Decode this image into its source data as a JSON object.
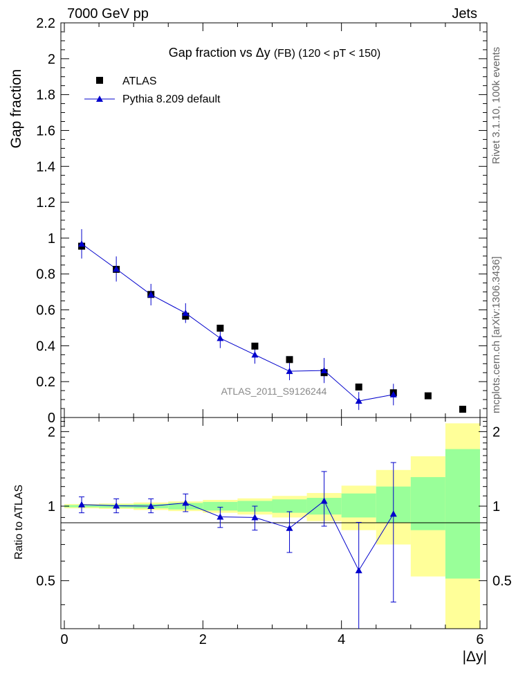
{
  "header": {
    "left": "7000 GeV pp",
    "right": "Jets"
  },
  "side_labels": {
    "top": "Rivet 3.1.10,  100k events",
    "bottom": "mcplots.cern.ch [arXiv:1306.3436]"
  },
  "chart_data": [
    {
      "type": "scatter",
      "title_main": "Gap fraction vs  Δy",
      "title_suffix": "(FB) (120 < pT < 150)",
      "xlabel": "",
      "ylabel": "Gap fraction",
      "xlim": [
        -0.05,
        6.1
      ],
      "ylim": [
        0,
        2.2
      ],
      "y_ticks": [
        0,
        0.2,
        0.4,
        0.6,
        0.8,
        1,
        1.2,
        1.4,
        1.6,
        1.8,
        2,
        2.2
      ],
      "y_tick_labels": [
        "0",
        "0.2",
        "0.4",
        "0.6",
        "0.8",
        "1",
        "1.2",
        "1.4",
        "1.6",
        "1.8",
        "2",
        "2.2"
      ],
      "watermark": "ATLAS_2011_S9126244",
      "legend_position": "top-left",
      "series": [
        {
          "name": "ATLAS",
          "style": "square-marker",
          "color": "#000000",
          "x": [
            0.25,
            0.75,
            1.25,
            1.75,
            2.25,
            2.75,
            3.25,
            3.75,
            4.25,
            4.75,
            5.25,
            5.75
          ],
          "y": [
            0.955,
            0.826,
            0.686,
            0.565,
            0.498,
            0.398,
            0.323,
            0.25,
            0.17,
            0.138,
            0.121,
            0.046
          ]
        },
        {
          "name": "Pythia 8.209 default",
          "style": "triangle-line",
          "color": "#0000cc",
          "x": [
            0.25,
            0.75,
            1.25,
            1.75,
            2.25,
            2.75,
            3.25,
            3.75,
            4.25,
            4.75
          ],
          "y": [
            0.968,
            0.828,
            0.685,
            0.582,
            0.442,
            0.35,
            0.258,
            0.262,
            0.092,
            0.128
          ],
          "yerr": [
            0.082,
            0.07,
            0.06,
            0.055,
            0.055,
            0.05,
            0.05,
            0.07,
            0.05,
            0.06
          ]
        }
      ]
    },
    {
      "type": "line",
      "xlabel": "|Δy|",
      "ylabel": "Ratio to ATLAS",
      "xlim": [
        -0.05,
        6.1
      ],
      "ylim": [
        0.32,
        2.28
      ],
      "x_ticks": [
        0,
        2,
        4,
        6
      ],
      "x_tick_labels": [
        "0",
        "2",
        "4",
        "6"
      ],
      "y_labeled_ticks": [
        0.5,
        1,
        2
      ],
      "y_tick_labels": [
        "0.5",
        "1",
        "2"
      ],
      "bins": [
        [
          0,
          0.5
        ],
        [
          0.5,
          1
        ],
        [
          1,
          1.5
        ],
        [
          1.5,
          2
        ],
        [
          2,
          2.5
        ],
        [
          2.5,
          3
        ],
        [
          3,
          3.5
        ],
        [
          3.5,
          4
        ],
        [
          4,
          4.5
        ],
        [
          4.5,
          5
        ],
        [
          5,
          5.5
        ],
        [
          5.5,
          6
        ]
      ],
      "band_total": [
        [
          0.98,
          1.02
        ],
        [
          0.975,
          1.025
        ],
        [
          0.965,
          1.035
        ],
        [
          0.955,
          1.045
        ],
        [
          0.94,
          1.06
        ],
        [
          0.925,
          1.075
        ],
        [
          0.9,
          1.1
        ],
        [
          0.87,
          1.13
        ],
        [
          0.8,
          1.21
        ],
        [
          0.7,
          1.4
        ],
        [
          0.52,
          1.59
        ],
        [
          0.32,
          2.16
        ]
      ],
      "band_stat": [
        [
          0.99,
          1.01
        ],
        [
          0.985,
          1.015
        ],
        [
          0.98,
          1.02
        ],
        [
          0.97,
          1.03
        ],
        [
          0.96,
          1.04
        ],
        [
          0.95,
          1.05
        ],
        [
          0.94,
          1.065
        ],
        [
          0.925,
          1.08
        ],
        [
          0.9,
          1.125
        ],
        [
          0.86,
          1.2
        ],
        [
          0.8,
          1.31
        ],
        [
          0.51,
          1.7
        ]
      ],
      "band_colors": {
        "total": "#ffff99",
        "stat": "#99ff99"
      },
      "series": [
        {
          "name": "Pythia 8.209 default",
          "color": "#0000cc",
          "x": [
            0.25,
            0.75,
            1.25,
            1.75,
            2.25,
            2.75,
            3.25,
            3.75,
            4.25,
            4.75
          ],
          "y": [
            1.015,
            1.003,
            1.0,
            1.03,
            0.905,
            0.9,
            0.815,
            1.05,
            0.55,
            0.93
          ],
          "ylo": [
            0.94,
            0.94,
            0.94,
            0.95,
            0.82,
            0.8,
            0.65,
            0.83,
            0.32,
            0.41
          ],
          "yhi": [
            1.09,
            1.07,
            1.07,
            1.12,
            0.99,
            1.0,
            0.95,
            1.38,
            0.86,
            1.5
          ]
        }
      ]
    }
  ]
}
